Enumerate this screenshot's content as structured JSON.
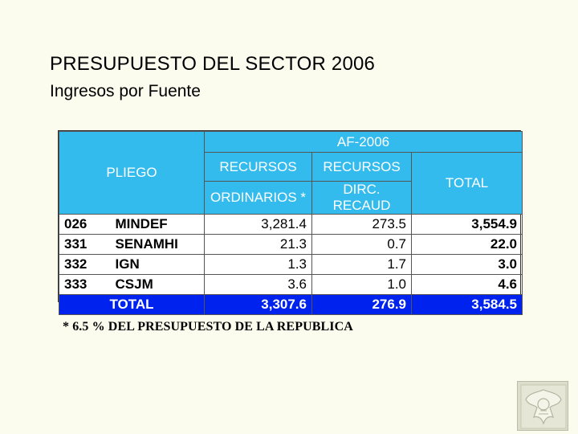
{
  "header": {
    "title": "PRESUPUESTO DEL SECTOR 2006",
    "subtitle": "Ingresos por Fuente"
  },
  "table": {
    "col_pliego": "PLIEGO",
    "col_group": "AF-2006",
    "col_ro_line1": "RECURSOS",
    "col_ro_line2": "ORDINARIOS *",
    "col_dr_line1": "RECURSOS",
    "col_dr_line2": "DIRC. RECAUD",
    "col_total": "TOTAL",
    "rows": [
      {
        "code": "026",
        "name": "MINDEF",
        "ro": "3,281.4",
        "dr": "273.5",
        "total": "3,554.9"
      },
      {
        "code": "331",
        "name": "SENAMHI",
        "ro": "21.3",
        "dr": "0.7",
        "total": "22.0"
      },
      {
        "code": "332",
        "name": "IGN",
        "ro": "1.3",
        "dr": "1.7",
        "total": "3.0"
      },
      {
        "code": "333",
        "name": "CSJM",
        "ro": "3.6",
        "dr": "1.0",
        "total": "4.6"
      }
    ],
    "total_row": {
      "label": "TOTAL",
      "ro": "3,307.6",
      "dr": "276.9",
      "total": "3,584.5"
    }
  },
  "footnote": "* 6.5 % DEL PRESUPUESTO DE LA REPUBLICA",
  "colors": {
    "header_bg": "#33bbee",
    "total_bg": "#0022ee",
    "page_bg": "#fcfcee"
  },
  "seal_icon": "coat-of-arms-icon"
}
